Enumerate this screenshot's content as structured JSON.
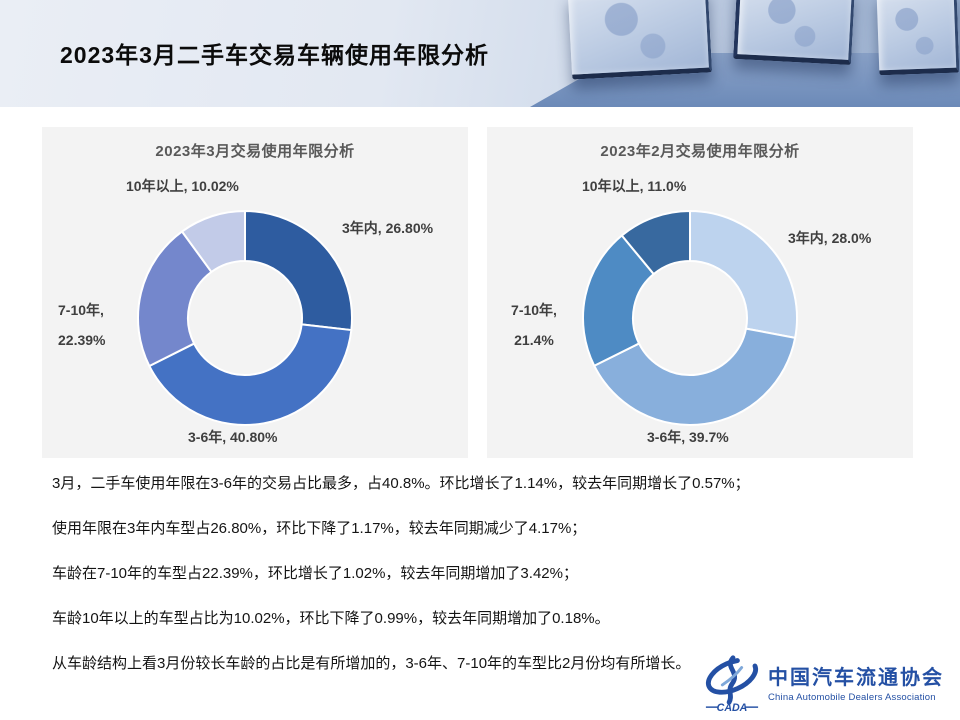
{
  "slide_title": "2023年3月二手车交易车辆使用年限分析",
  "chart_data": [
    {
      "type": "pie",
      "subtype": "donut",
      "title": "2023年3月交易使用年限分析",
      "categories": [
        "3年内",
        "3-6年",
        "7-10年",
        "10年以上"
      ],
      "values": [
        26.8,
        40.8,
        22.39,
        10.02
      ],
      "unit": "%",
      "colors": [
        "#2E5CA0",
        "#4472C4",
        "#7487CC",
        "#C2CBE8"
      ],
      "start_angle_deg": 0,
      "direction": "clockwise",
      "legend": "none",
      "labels_outside": true
    },
    {
      "type": "pie",
      "subtype": "donut",
      "title": "2023年2月交易使用年限分析",
      "categories": [
        "3年内",
        "3-6年",
        "7-10年",
        "10年以上"
      ],
      "values": [
        28.0,
        39.7,
        21.4,
        11.0
      ],
      "unit": "%",
      "colors": [
        "#BDD3EE",
        "#88AFDC",
        "#4E8BC4",
        "#38699F"
      ],
      "start_angle_deg": 0,
      "direction": "clockwise",
      "legend": "none",
      "labels_outside": true
    }
  ],
  "charts": {
    "march": {
      "label_top_left": "10年以上, 10.02%",
      "label_right": "3年内, 26.80%",
      "label_left_line1": "7-10年,",
      "label_left_line2": "22.39%",
      "label_bottom": "3-6年, 40.80%"
    },
    "feb": {
      "label_top_left": "10年以上, 11.0%",
      "label_right": "3年内, 28.0%",
      "label_left_line1": "7-10年,",
      "label_left_line2": "21.4%",
      "label_bottom": "3-6年, 39.7%"
    }
  },
  "bullets": [
    "3月，二手车使用年限在3-6年的交易占比最多，占40.8%。环比增长了1.14%，较去年同期增长了0.57%；",
    "使用年限在3年内车型占26.80%，环比下降了1.17%，较去年同期减少了4.17%；",
    "车龄在7-10年的车型占22.39%，环比增长了1.02%，较去年同期增加了3.42%；",
    "车龄10年以上的车型占比为10.02%，环比下降了0.99%，较去年同期增加了0.18%。",
    "从车龄结构上看3月份较长车龄的占比是有所增加的，3-6年、7-10年的车型比2月份均有所增长。"
  ],
  "logo": {
    "acronym": "CADA",
    "name_cn": "中国汽车流通协会",
    "name_en": "China Automobile Dealers Association",
    "color": "#2450A4"
  }
}
